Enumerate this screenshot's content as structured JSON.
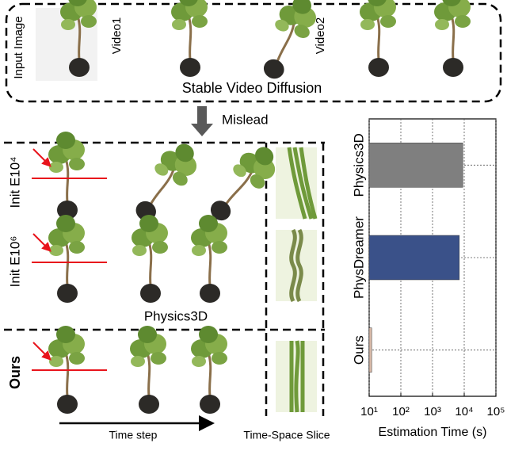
{
  "figure": {
    "input_image": "Input Image",
    "video1": "Video1",
    "video2": "Video2",
    "svd": "Stable Video Diffusion",
    "mislead": "Mislead",
    "row1": "Init E10⁴",
    "row2": "Init E10⁶",
    "physics3d": "Physics3D",
    "ours": "Ours",
    "time_step": "Time step",
    "slice": "Time-Space Slice"
  },
  "chart_data": {
    "type": "barh",
    "categories": [
      "Physics3D",
      "PhysDreamer",
      "Ours"
    ],
    "values": [
      9000,
      7000,
      12
    ],
    "colors": [
      "#7f7f7f",
      "#3a5189",
      "#d9b9a8"
    ],
    "xlabel": "Estimation Time (s)",
    "xlim": [
      10,
      100000
    ],
    "log_x": true,
    "xticks": [
      {
        "value": 10,
        "label": "10¹"
      },
      {
        "value": 100,
        "label": "10²"
      },
      {
        "value": 1000,
        "label": "10³"
      },
      {
        "value": 10000,
        "label": "10⁴"
      },
      {
        "value": 100000,
        "label": "10⁵"
      }
    ],
    "grid": true
  }
}
